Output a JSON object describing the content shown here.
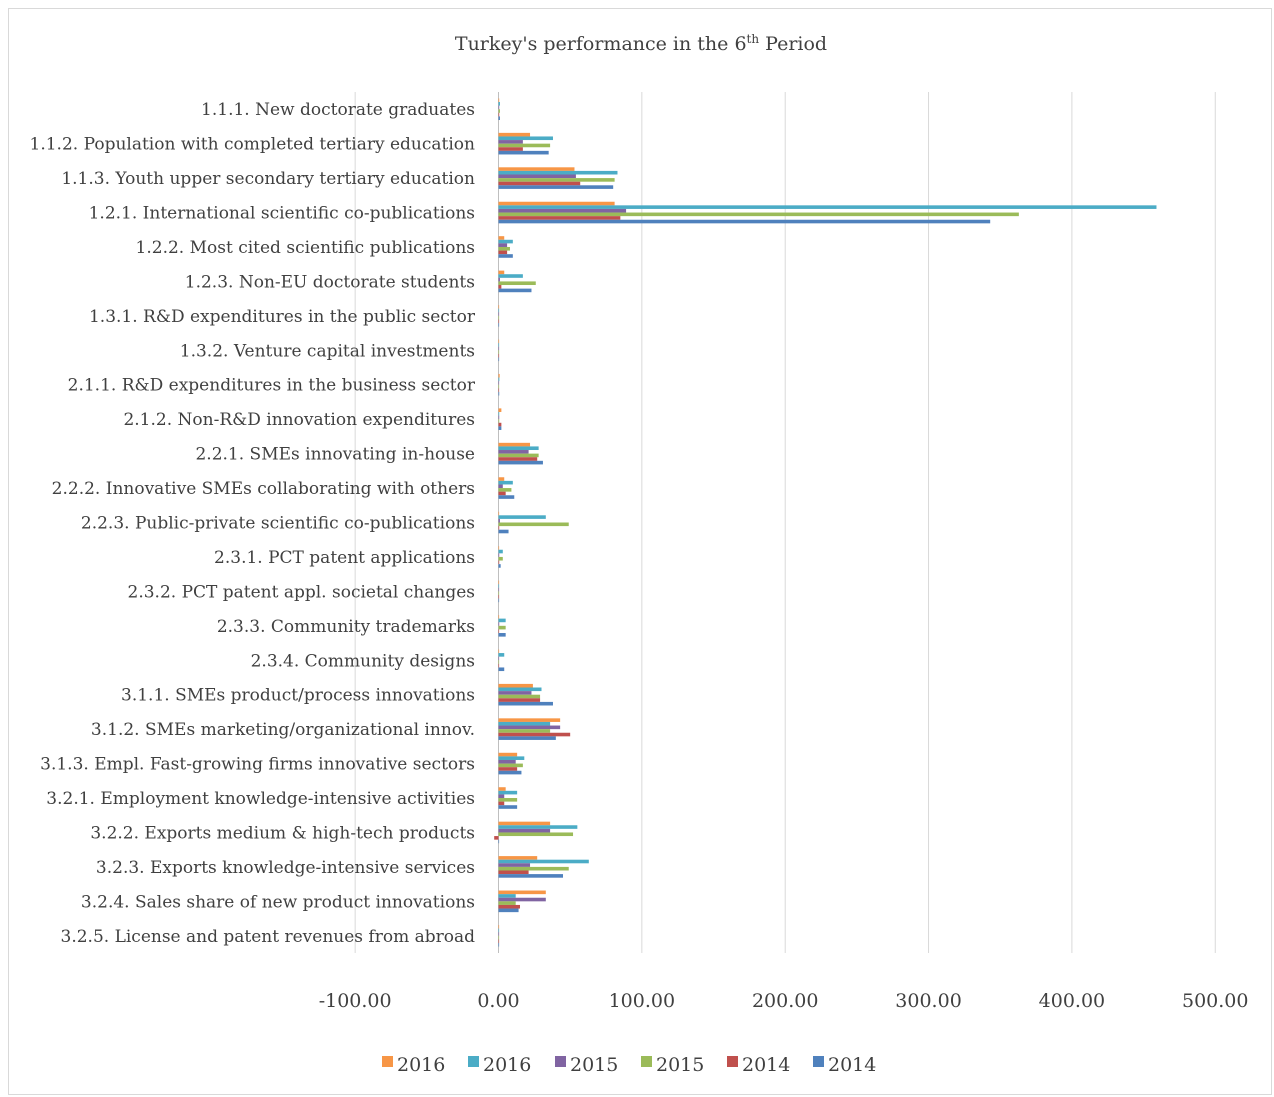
{
  "chart_data": {
    "type": "bar",
    "orientation": "horizontal",
    "title": "Turkey's performance in the 6th Period",
    "title_main": "Turkey's performance in the 6",
    "title_sup": "th",
    "title_end": " Period",
    "xlim": [
      -100,
      500
    ],
    "x_ticks": [
      -100,
      0,
      100,
      200,
      300,
      400,
      500
    ],
    "x_tick_labels": [
      "-100.00",
      "0.00",
      "100.00",
      "200.00",
      "300.00",
      "400.00",
      "500.00"
    ],
    "grid": "vertical",
    "legend_position": "bottom",
    "categories": [
      "1.1.1. New doctorate graduates",
      "1.1.2. Population with completed tertiary education",
      "1.1.3. Youth upper secondary tertiary education",
      "1.2.1. International scientific co-publications",
      "1.2.2. Most cited scientific publications",
      "1.2.3. Non-EU doctorate students",
      "1.3.1. R&D expenditures in the public sector",
      "1.3.2. Venture capital investments",
      "2.1.1. R&D expenditures in the business sector",
      "2.1.2. Non-R&D innovation expenditures",
      "2.2.1. SMEs innovating in-house",
      "2.2.2. Innovative SMEs collaborating with others",
      "2.2.3. Public-private scientific co-publications",
      "2.3.1. PCT patent applications",
      "2.3.2. PCT patent appl. societal changes",
      "2.3.3. Community trademarks",
      "2.3.4. Community designs",
      "3.1.1. SMEs product/process innovations",
      "3.1.2. SMEs marketing/organizational innov.",
      "3.1.3. Empl. Fast-growing firms innovative sectors",
      "3.2.1. Employment knowledge-intensive activities",
      "3.2.2. Exports medium & high-tech products",
      "3.2.3. Exports knowledge-intensive services",
      "3.2.4. Sales share of new product innovations",
      "3.2.5. License and patent revenues from abroad"
    ],
    "series": [
      {
        "name": "2016",
        "color": "#f79646",
        "values": [
          0.5,
          22,
          53,
          81,
          4,
          4,
          0,
          0,
          0.8,
          2,
          22,
          4,
          0,
          0,
          0,
          0,
          0,
          24,
          43,
          13,
          5,
          36,
          27,
          33,
          0
        ]
      },
      {
        "name": "2016",
        "color": "#4bacc6",
        "values": [
          1,
          38,
          83,
          459,
          10,
          17,
          0,
          0,
          0.6,
          0.5,
          28,
          10,
          33,
          3,
          0.3,
          5,
          4,
          30,
          36,
          18,
          13,
          55,
          63,
          12,
          0
        ]
      },
      {
        "name": "2015",
        "color": "#8064a2",
        "values": [
          0.5,
          17,
          54,
          89,
          6,
          1,
          0,
          0,
          0.4,
          0.5,
          21,
          3,
          1,
          0.5,
          0,
          0.5,
          0,
          23,
          43,
          12,
          4,
          36,
          22,
          33,
          0
        ]
      },
      {
        "name": "2015",
        "color": "#9bbb59",
        "values": [
          1,
          36,
          81,
          363,
          8,
          26,
          0,
          0,
          0.3,
          0.5,
          28,
          9,
          49,
          3,
          0.3,
          5,
          0,
          29,
          36,
          17,
          13,
          52,
          49,
          12,
          0
        ]
      },
      {
        "name": "2014",
        "color": "#c0504d",
        "values": [
          0.5,
          17,
          57,
          85,
          6,
          2,
          0,
          0,
          0.3,
          2,
          27,
          5,
          0.5,
          0.5,
          0,
          0,
          0,
          29,
          50,
          13,
          4,
          -3,
          21,
          15,
          0
        ]
      },
      {
        "name": "2014",
        "color": "#4f81bd",
        "values": [
          1,
          35,
          80,
          343,
          10,
          23,
          0,
          0,
          0.5,
          2,
          31,
          11,
          7,
          1.5,
          0.3,
          5,
          4,
          38,
          40,
          16,
          13,
          0,
          45,
          14,
          0
        ]
      }
    ]
  }
}
